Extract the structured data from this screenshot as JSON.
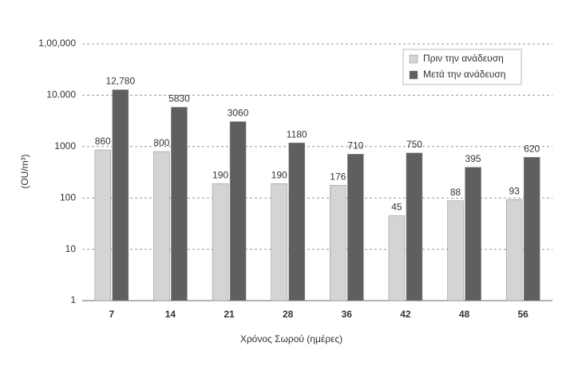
{
  "chart_data": {
    "type": "bar",
    "log_y": true,
    "grid": true,
    "legend_position": "upper right",
    "x_label": "Χρόνος Σωρού (ημέρες)",
    "y_label": "(OU/m³)",
    "categories": [
      "7",
      "14",
      "21",
      "28",
      "36",
      "42",
      "48",
      "56"
    ],
    "series": [
      {
        "name": "Πριν την ανάδευση",
        "color": "#d4d4d4",
        "values": [
          860,
          800,
          190,
          190,
          176,
          45,
          88,
          93
        ]
      },
      {
        "name": "Μετά την ανάδευση",
        "color": "#5f5f5f",
        "values": [
          12780,
          5830,
          3060,
          1180,
          710,
          750,
          395,
          620
        ],
        "value_labels": [
          "12,780",
          "5830",
          "3060",
          "1180",
          "710",
          "750",
          "395",
          "620"
        ]
      }
    ],
    "ylim": [
      1,
      100000
    ],
    "yticks": [
      1,
      10,
      100,
      1000,
      {
        "value": 10000,
        "label": "10.000"
      },
      {
        "value": 100000,
        "label": "1,00,000"
      }
    ]
  }
}
